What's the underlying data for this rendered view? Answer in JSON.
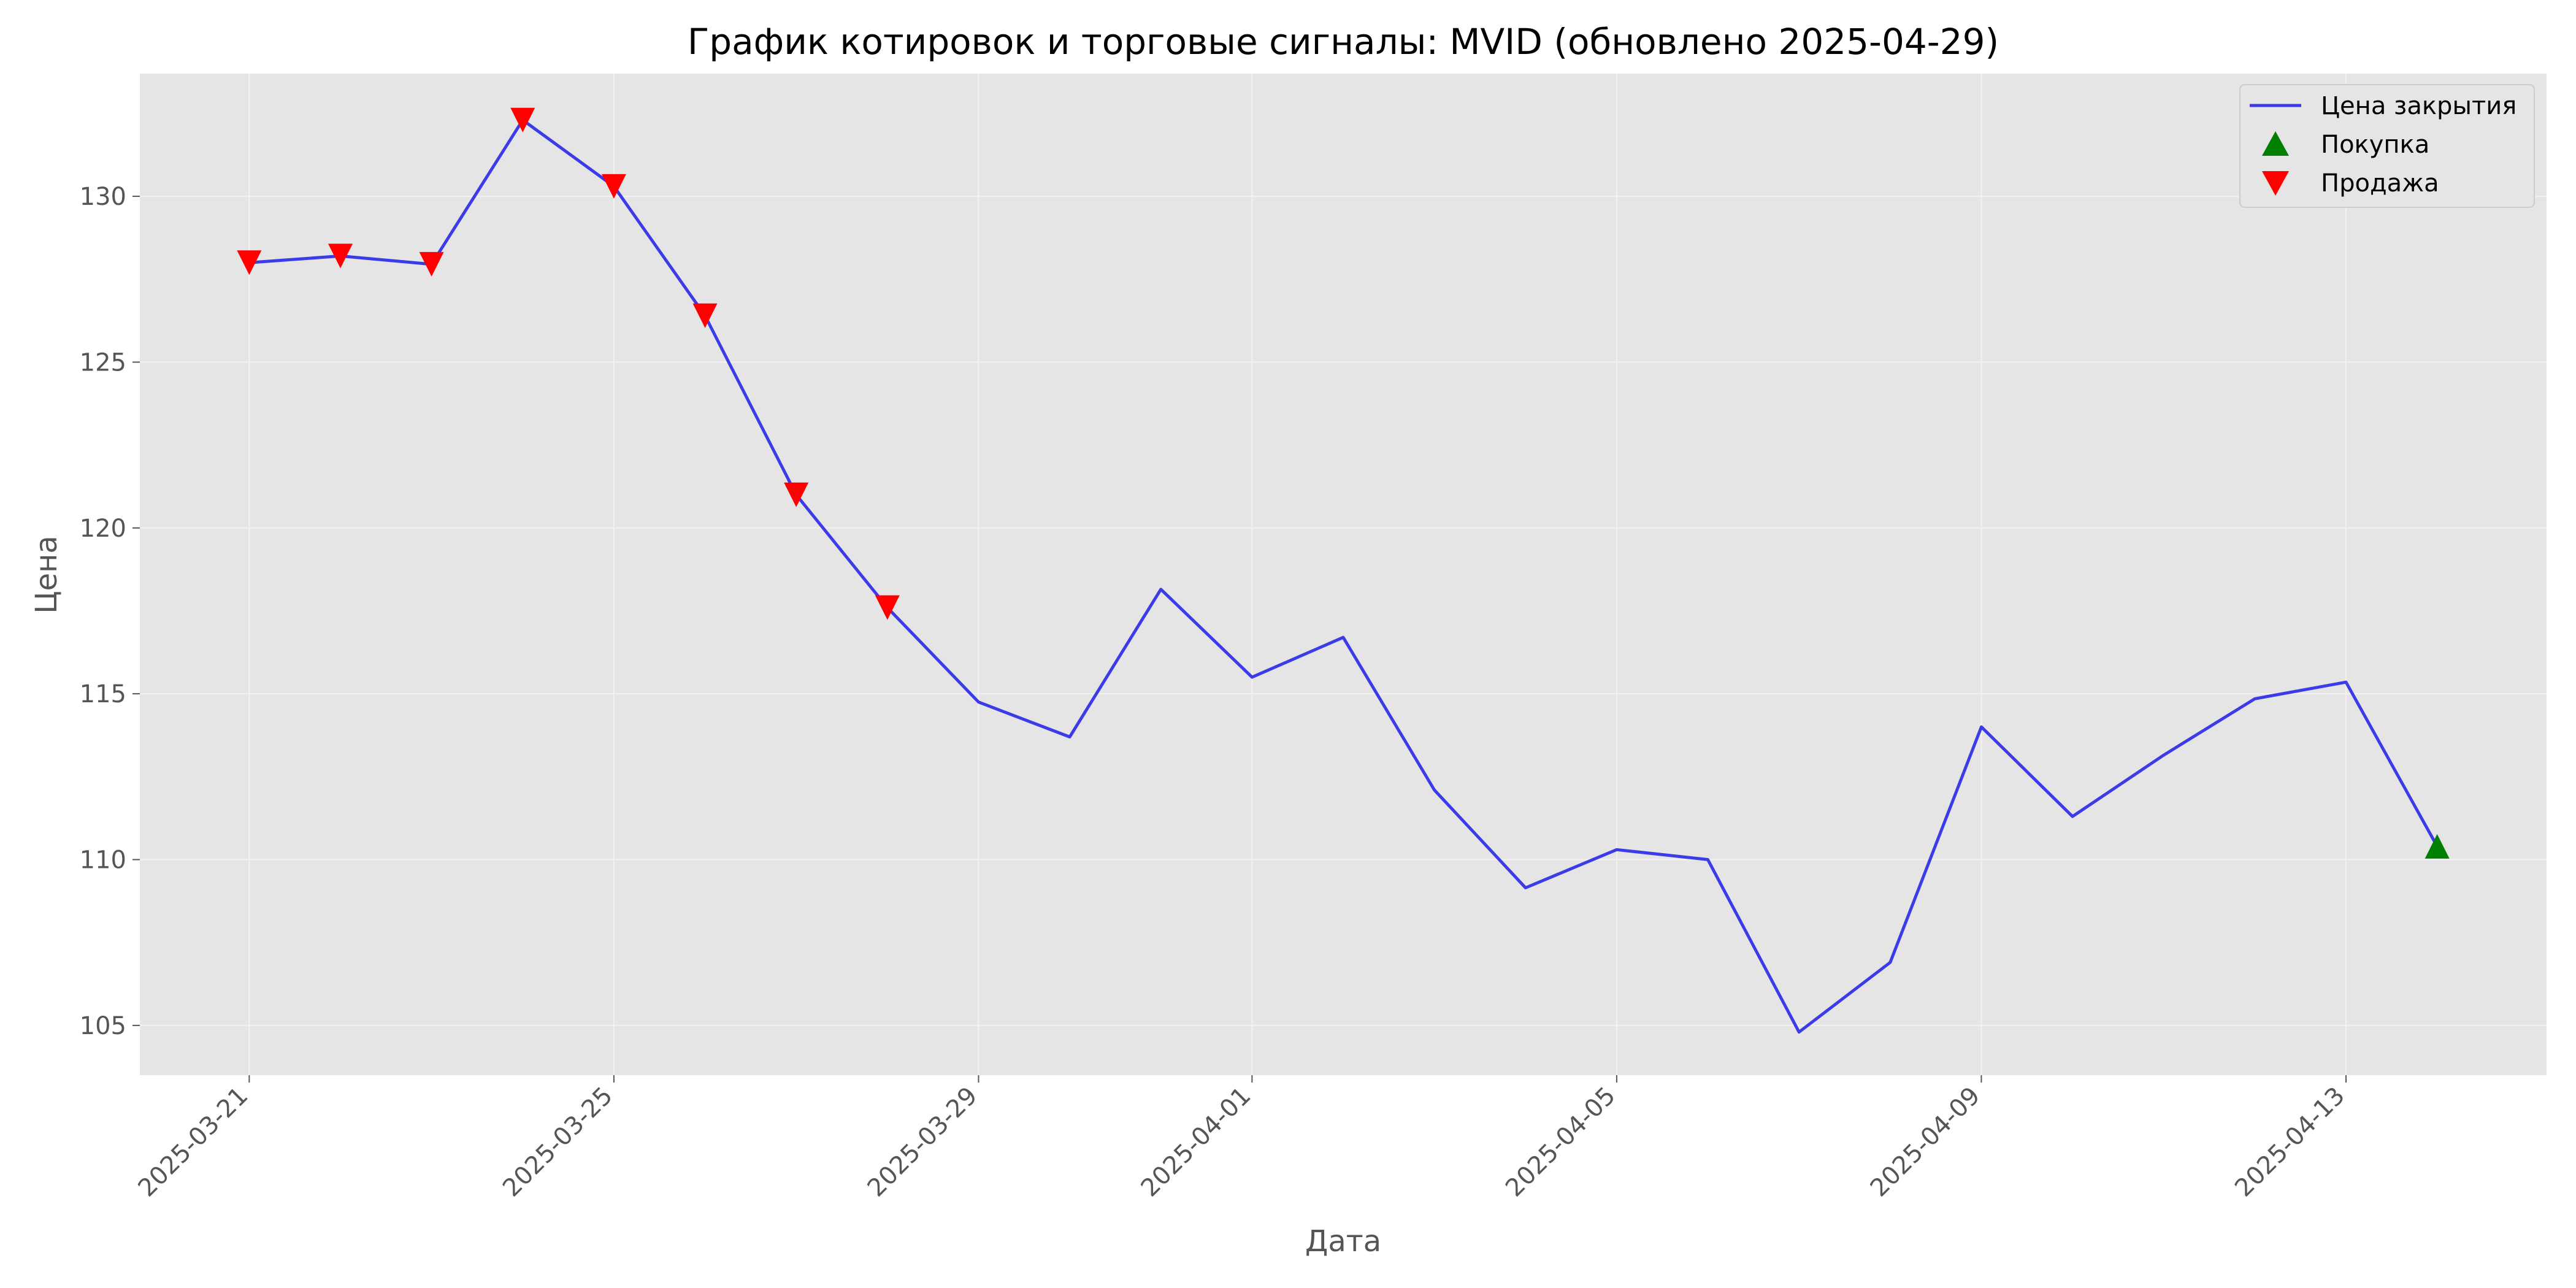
{
  "chart_data": {
    "type": "line",
    "title": "График котировок и торговые сигналы: MVID (обновлено 2025-04-29)",
    "xlabel": "Дата",
    "ylabel": "Цена",
    "x_ticks": [
      "2025-03-21",
      "2025-03-25",
      "2025-03-29",
      "2025-04-01",
      "2025-04-05",
      "2025-04-09",
      "2025-04-13"
    ],
    "y_ticks": [
      105,
      110,
      115,
      120,
      125,
      130
    ],
    "ylim": [
      103.5,
      133.7
    ],
    "xlim": [
      "2025-03-19 19:12",
      "2025-04-15 04:48"
    ],
    "grid": true,
    "legend_position": "top-right",
    "legend": [
      "Цена закрытия",
      "Покупка",
      "Продажа"
    ],
    "colors": {
      "background": "#E5E5E5",
      "grid": "#F2F2F2",
      "line": "#3B3BE8",
      "buy": "#008000",
      "sell": "#FF0000"
    },
    "series": [
      {
        "name": "Цена закрытия",
        "x": [
          "2025-03-21",
          "2025-03-22",
          "2025-03-23",
          "2025-03-24",
          "2025-03-25",
          "2025-03-26",
          "2025-03-27",
          "2025-03-28",
          "2025-03-29",
          "2025-03-30",
          "2025-03-31",
          "2025-04-01",
          "2025-04-02",
          "2025-04-03",
          "2025-04-04",
          "2025-04-05",
          "2025-04-06",
          "2025-04-07",
          "2025-04-08",
          "2025-04-09",
          "2025-04-10",
          "2025-04-11",
          "2025-04-12",
          "2025-04-13",
          "2025-04-14"
        ],
        "y": [
          128.0,
          128.2,
          127.95,
          132.3,
          130.3,
          126.4,
          121.0,
          117.6,
          114.75,
          113.7,
          118.15,
          115.5,
          116.7,
          112.1,
          109.15,
          110.3,
          110.0,
          104.8,
          106.9,
          114.0,
          111.3,
          113.15,
          114.85,
          115.35,
          110.4
        ]
      }
    ],
    "sell_signals": {
      "name": "Продажа",
      "x": [
        "2025-03-21",
        "2025-03-22",
        "2025-03-23",
        "2025-03-24",
        "2025-03-25",
        "2025-03-26",
        "2025-03-27",
        "2025-03-28"
      ],
      "y": [
        128.0,
        128.2,
        127.95,
        132.3,
        130.3,
        126.4,
        121.0,
        117.6
      ]
    },
    "buy_signals": {
      "name": "Покупка",
      "x": [
        "2025-04-14"
      ],
      "y": [
        110.4
      ]
    }
  }
}
